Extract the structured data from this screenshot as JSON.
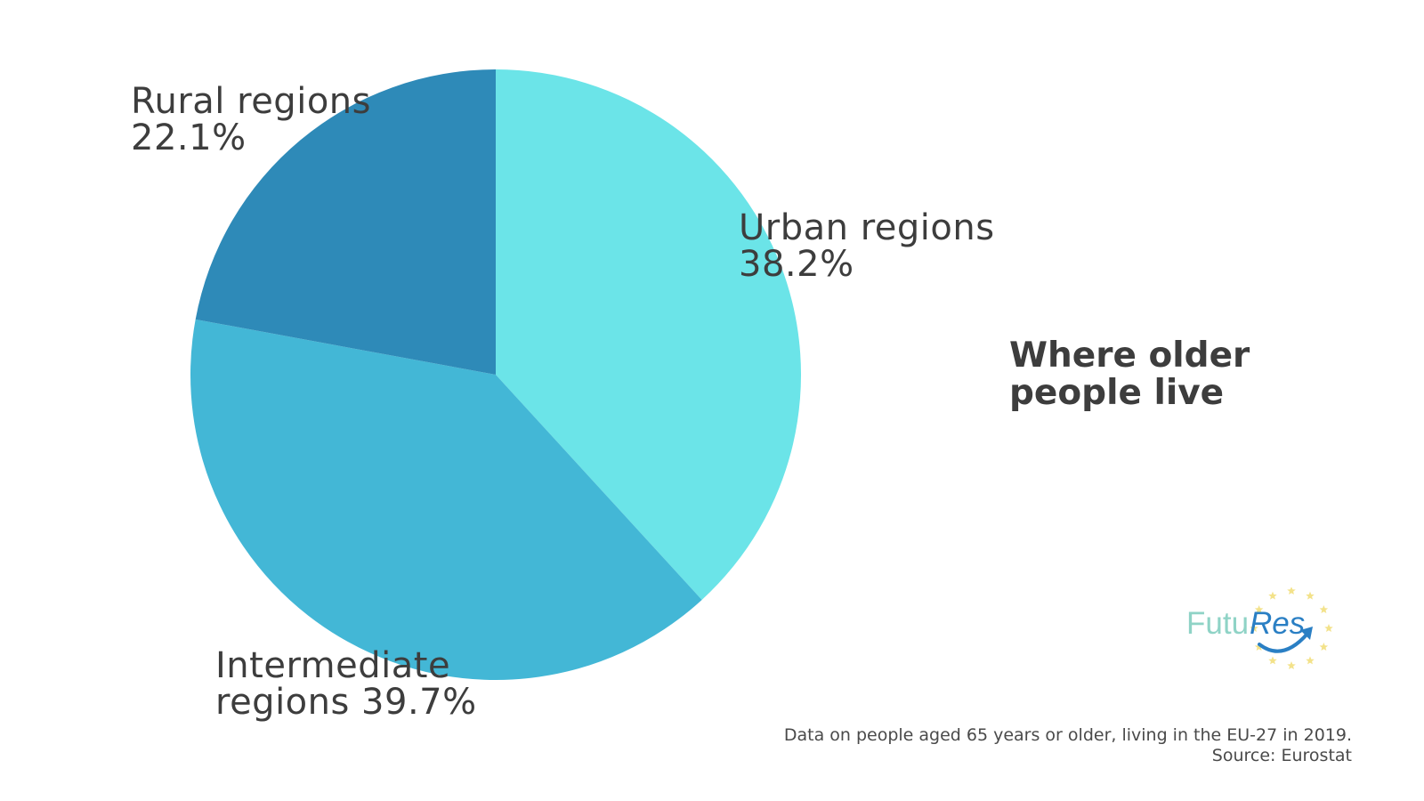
{
  "chart_data": {
    "type": "pie",
    "title": [
      "Where older",
      "people live"
    ],
    "slices": [
      {
        "name": "Urban regions",
        "value": 38.2,
        "label_lines": [
          "Urban regions",
          "38.2%"
        ],
        "color": "#6be4e8"
      },
      {
        "name": "Intermediate regions",
        "value": 39.7,
        "label_lines": [
          "Intermediate",
          "regions 39.7%"
        ],
        "color": "#43b7d6"
      },
      {
        "name": "Rural regions",
        "value": 22.1,
        "label_lines": [
          "Rural regions",
          "22.1%"
        ],
        "color": "#2e8ab8"
      }
    ],
    "start_angle": "12 o'clock",
    "direction": "clockwise",
    "legend": "none"
  },
  "footnote": {
    "line1": "Data on people aged 65 years or older, living in the EU-27 in 2019.",
    "line2": "Source: Eurostat"
  },
  "logo": {
    "text_part1": "Futu",
    "text_part2": "Res",
    "color_part1": "#8fd3c6",
    "color_part2": "#2a7fc4",
    "star_color": "#f3e28a",
    "icon": "upward-arrow-icon"
  },
  "colors": {
    "text": "#3d3d3d",
    "background": "#ffffff"
  }
}
